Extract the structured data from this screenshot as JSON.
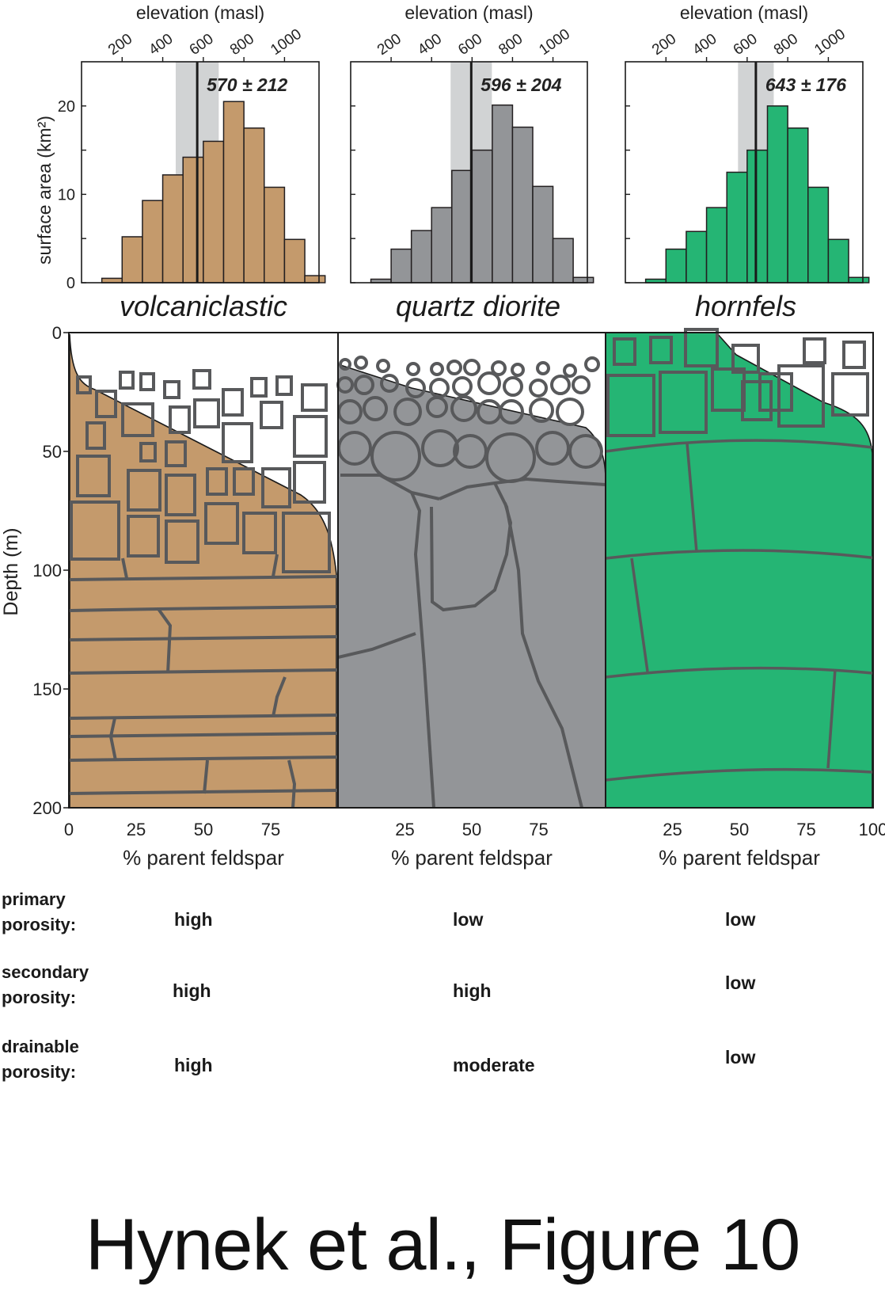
{
  "axes": {
    "elevation_label": "elevation (masl)",
    "surface_label": "surface area (km²)",
    "depth_label": "Depth (m)",
    "feldspar_label": "% parent feldspar",
    "elev_ticks": [
      "200",
      "400",
      "600",
      "800",
      "1000"
    ],
    "area_ticks": [
      "0",
      "10",
      "20"
    ],
    "depth_ticks": [
      "0",
      "50",
      "100",
      "150",
      "200"
    ],
    "feldspar_ticks_first": [
      "0",
      "25",
      "50",
      "75"
    ],
    "feldspar_ticks_mid": [
      "25",
      "50",
      "75"
    ],
    "feldspar_ticks_last": [
      "25",
      "50",
      "75",
      "100"
    ]
  },
  "panels": [
    {
      "rock": "volcaniclastic",
      "stat": "570 ± 212",
      "mean": 570,
      "sd": 212,
      "color": "#c49a6c",
      "chart_data": {
        "type": "bar",
        "bin_starts": [
          100,
          200,
          300,
          400,
          500,
          600,
          700,
          800,
          900,
          1000,
          1100
        ],
        "bin_width": 100,
        "values": [
          0.5,
          5.2,
          9.3,
          12.2,
          14.2,
          16.0,
          20.5,
          17.5,
          10.8,
          4.9,
          0.8
        ],
        "xlim": [
          0,
          1170
        ],
        "ylim": [
          0,
          25
        ]
      }
    },
    {
      "rock": "quartz diorite",
      "stat": "596 ± 204",
      "mean": 596,
      "sd": 204,
      "color": "#939598",
      "chart_data": {
        "type": "bar",
        "bin_starts": [
          100,
          200,
          300,
          400,
          500,
          600,
          700,
          800,
          900,
          1000,
          1100
        ],
        "bin_width": 100,
        "values": [
          0.4,
          3.8,
          5.9,
          8.5,
          12.7,
          15.0,
          20.1,
          17.6,
          10.9,
          5.0,
          0.6
        ],
        "xlim": [
          0,
          1170
        ],
        "ylim": [
          0,
          25
        ]
      }
    },
    {
      "rock": "hornfels",
      "stat": "643 ± 176",
      "mean": 643,
      "sd": 176,
      "color": "#25b574",
      "chart_data": {
        "type": "bar",
        "bin_starts": [
          100,
          200,
          300,
          400,
          500,
          600,
          700,
          800,
          900,
          1000,
          1100
        ],
        "bin_width": 100,
        "values": [
          0.4,
          3.8,
          5.8,
          8.5,
          12.5,
          15.0,
          20.0,
          17.5,
          10.8,
          4.9,
          0.6
        ],
        "xlim": [
          0,
          1170
        ],
        "ylim": [
          0,
          25
        ]
      }
    }
  ],
  "properties": [
    {
      "label": "primary\nporosity:",
      "values": [
        "high",
        "low",
        "low"
      ]
    },
    {
      "label": "secondary\nporosity:",
      "values": [
        "high",
        "high",
        "low"
      ]
    },
    {
      "label": "drainable\nporosity:",
      "values": [
        "high",
        "moderate",
        "low"
      ]
    }
  ],
  "caption": "Hynek et al., Figure 10"
}
